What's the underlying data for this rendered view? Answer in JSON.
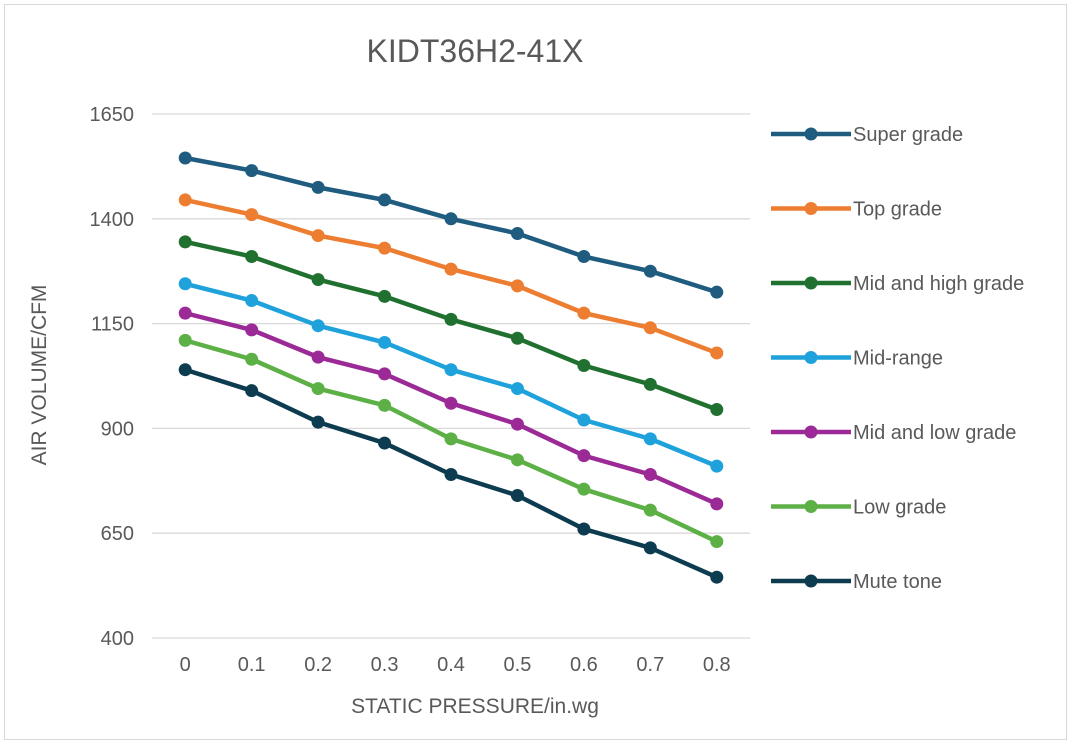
{
  "chart_data": {
    "type": "line",
    "title": "KIDT36H2-41X",
    "xlabel": "STATIC PRESSURE/in.wg",
    "ylabel": "AIR VOLUME/CFM",
    "categories": [
      "0",
      "0.1",
      "0.2",
      "0.3",
      "0.4",
      "0.5",
      "0.6",
      "0.7",
      "0.8"
    ],
    "y_ticks": [
      "400",
      "650",
      "900",
      "1150",
      "1400",
      "1650"
    ],
    "ylim": [
      400,
      1650
    ],
    "grid": true,
    "legend_position": "right",
    "series": [
      {
        "name": "Super grade",
        "color": "#1f5c7f",
        "values": [
          1545,
          1515,
          1475,
          1445,
          1400,
          1365,
          1310,
          1275,
          1225
        ]
      },
      {
        "name": "Top grade",
        "color": "#ed7d31",
        "values": [
          1445,
          1410,
          1360,
          1330,
          1280,
          1240,
          1175,
          1140,
          1080
        ]
      },
      {
        "name": "Mid and high grade",
        "color": "#20712f",
        "values": [
          1345,
          1310,
          1255,
          1215,
          1160,
          1115,
          1050,
          1005,
          945
        ]
      },
      {
        "name": "Mid-range",
        "color": "#1fa2dc",
        "values": [
          1245,
          1205,
          1145,
          1105,
          1040,
          995,
          920,
          875,
          810
        ]
      },
      {
        "name": "Mid and low grade",
        "color": "#9b2a97",
        "values": [
          1175,
          1135,
          1070,
          1030,
          960,
          910,
          835,
          790,
          720
        ]
      },
      {
        "name": "Low grade",
        "color": "#5cb046",
        "values": [
          1110,
          1065,
          995,
          955,
          875,
          825,
          755,
          705,
          630
        ]
      },
      {
        "name": "Mute tone",
        "color": "#0d3b4f",
        "values": [
          1040,
          990,
          915,
          865,
          790,
          740,
          660,
          615,
          545
        ]
      }
    ]
  }
}
